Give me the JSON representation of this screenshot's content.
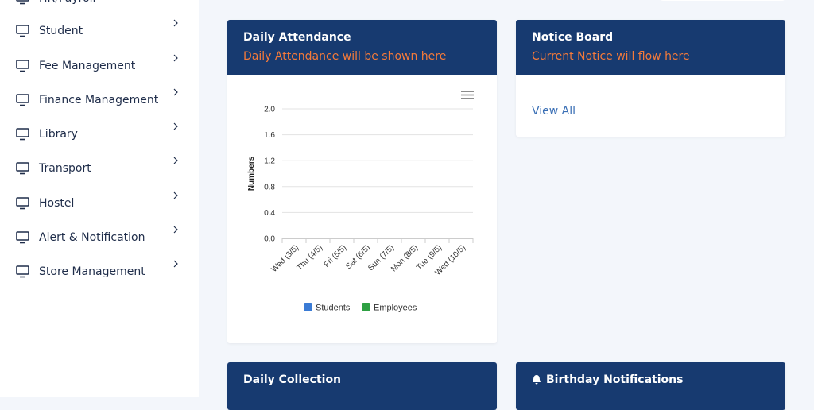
{
  "sidebar": {
    "items": [
      "HR/Payroll",
      "Student",
      "Fee Management",
      "Finance Management",
      "Library",
      "Transport",
      "Hostel",
      "Alert & Notification",
      "Store Management"
    ]
  },
  "cards": [
    {
      "title": "Daily Attendance",
      "subtitle": "Daily Attendance will be shown here"
    },
    {
      "title": "Notice Board",
      "subtitle": "Current Notice will flow here",
      "link": "View All"
    },
    {
      "title": "Daily Collection"
    },
    {
      "title": "Birthday Notifications"
    }
  ],
  "chart_data": {
    "type": "bar",
    "ylabel": "Numbers",
    "categories": [
      "Wed (3/5)",
      "Thu (4/5)",
      "Fri (5/5)",
      "Sat (6/5)",
      "Sun (7/5)",
      "Mon (8/5)",
      "Tue (9/5)",
      "Wed (10/5)"
    ],
    "series": [
      {
        "name": "Students",
        "color": "#3a7bd5",
        "values": [
          0,
          0,
          0,
          0,
          0,
          0,
          0,
          0
        ]
      },
      {
        "name": "Employees",
        "color": "#2ea043",
        "values": [
          0,
          0,
          0,
          0,
          0,
          0,
          0,
          0
        ]
      }
    ],
    "ylim": [
      0,
      2
    ],
    "yticks": [
      {
        "value": 0,
        "label": "0.0"
      },
      0.4,
      0.8,
      1.2,
      1.6,
      {
        "value": 2,
        "label": "2.0"
      }
    ],
    "grid": true,
    "legend": "bottom"
  }
}
